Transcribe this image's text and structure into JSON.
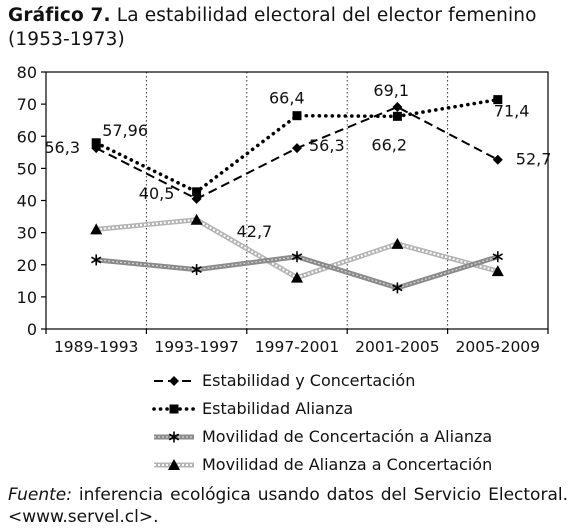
{
  "figure": {
    "label": "Gráfico 7.",
    "title": "La estabilidad electoral del elector femenino (1953-1973)",
    "source_label": "Fuente:",
    "source_text": "inferencia ecológica usando datos del Servicio Electoral. <www.servel.cl>."
  },
  "chart_data": {
    "type": "line",
    "title": "La estabilidad electoral del elector femenino (1953-1973)",
    "categories": [
      "1989-1993",
      "1993-1997",
      "1997-2001",
      "2001-2005",
      "2005-2009"
    ],
    "ylim": [
      0,
      80
    ],
    "yticks": [
      0,
      10,
      20,
      30,
      40,
      50,
      60,
      70,
      80
    ],
    "grid": "vertical dotted",
    "legend_position": "bottom",
    "series": [
      {
        "name": "Estabilidad y Concertación",
        "values": [
          56.3,
          40.5,
          56.3,
          69.1,
          52.7
        ],
        "labels": [
          "56,3",
          "40,5",
          "56,3",
          "69,1",
          "52,7"
        ],
        "marker": "diamond",
        "line": "dashed",
        "color": "#000000"
      },
      {
        "name": "Estabilidad Alianza",
        "values": [
          57.96,
          42.7,
          66.4,
          66.2,
          71.4
        ],
        "labels": [
          "57,96",
          "42,7",
          "66,4",
          "66,2",
          "71,4"
        ],
        "marker": "square",
        "line": "dotted",
        "color": "#000000"
      },
      {
        "name": "Movilidad de Concertación a Alianza",
        "values": [
          21.5,
          18.5,
          22.5,
          12.8,
          22.5
        ],
        "marker": "star",
        "line": "gray-textured",
        "color": "#777777"
      },
      {
        "name": "Movilidad de Alianza a Concertación",
        "values": [
          31,
          34,
          16,
          26.5,
          18
        ],
        "marker": "triangle",
        "line": "light-checkered",
        "color": "#aaaaaa"
      }
    ]
  }
}
